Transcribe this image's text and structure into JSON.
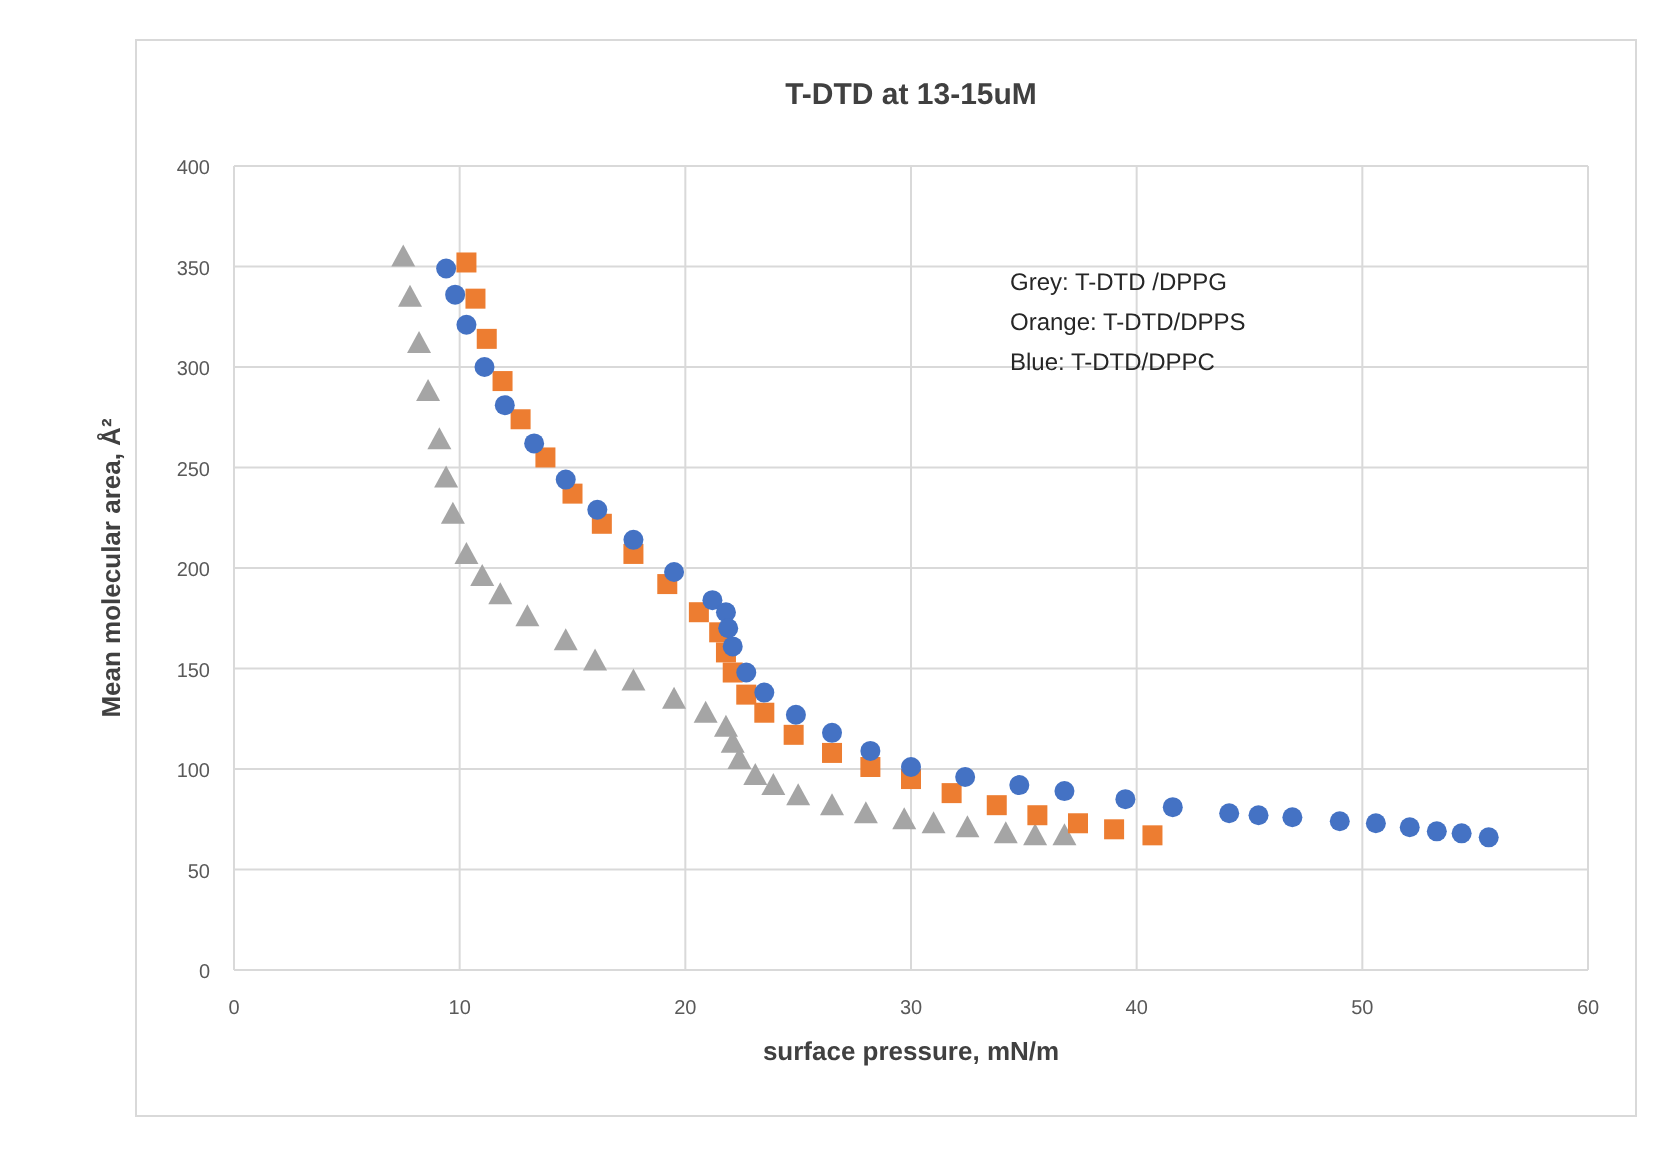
{
  "chart_data": {
    "type": "scatter",
    "title": "T-DTD at 13-15uM",
    "xlabel": "surface pressure, mN/m",
    "ylabel": "Mean molecular area, Å²",
    "xlim": [
      0,
      60
    ],
    "xticks": [
      0,
      10,
      20,
      30,
      40,
      50,
      60
    ],
    "ylim": [
      0,
      400
    ],
    "yticks": [
      0,
      50,
      100,
      150,
      200,
      250,
      300,
      350,
      400
    ],
    "grid": true,
    "annotations": [
      "Grey: T-DTD /DPPG",
      "Orange: T-DTD/DPPS",
      "Blue: T-DTD/DPPC"
    ],
    "series": [
      {
        "color": "#a5a5a5",
        "marker": "triangle",
        "x": [
          7.5,
          7.8,
          8.2,
          8.6,
          9.1,
          9.4,
          9.7,
          10.3,
          11,
          11.8,
          13,
          14.7,
          16,
          17.7,
          19.5,
          20.9,
          21.8,
          22.1,
          22.4,
          23.1,
          23.9,
          25,
          26.5,
          28,
          29.7,
          31,
          32.5,
          34.2,
          35.5,
          36.8
        ],
        "values": [
          355,
          335,
          312,
          288,
          264,
          245,
          227,
          207,
          196,
          187,
          176,
          164,
          154,
          144,
          135,
          128,
          121,
          113,
          105,
          97,
          92,
          87,
          82,
          78,
          75,
          73,
          71,
          68,
          67,
          67
        ]
      },
      {
        "color": "#ed7d31",
        "marker": "square",
        "x": [
          10.3,
          10.7,
          11.2,
          11.9,
          12.7,
          13.8,
          15,
          16.3,
          17.7,
          19.2,
          20.6,
          21.5,
          21.8,
          22.1,
          22.7,
          23.5,
          24.8,
          26.5,
          28.2,
          30,
          31.8,
          33.8,
          35.6,
          37.4,
          39,
          40.7
        ],
        "values": [
          352,
          334,
          314,
          293,
          274,
          255,
          237,
          222,
          207,
          192,
          178,
          168,
          158,
          148,
          137,
          128,
          117,
          108,
          101,
          95,
          88,
          82,
          77,
          73,
          70,
          67
        ]
      },
      {
        "color": "#4472c4",
        "marker": "circle",
        "x": [
          9.4,
          9.8,
          10.3,
          11.1,
          12,
          13.3,
          14.7,
          16.1,
          17.7,
          19.5,
          21.2,
          21.8,
          21.9,
          22.1,
          22.7,
          23.5,
          24.9,
          26.5,
          28.2,
          30,
          32.4,
          34.8,
          36.8,
          39.5,
          41.6,
          44.1,
          45.4,
          46.9,
          49,
          50.6,
          52.1,
          53.3,
          54.4,
          55.6
        ],
        "values": [
          349,
          336,
          321,
          300,
          281,
          262,
          244,
          229,
          214,
          198,
          184,
          178,
          170,
          161,
          148,
          138,
          127,
          118,
          109,
          101,
          96,
          92,
          89,
          85,
          81,
          78,
          77,
          76,
          74,
          73,
          71,
          69,
          68,
          66
        ]
      }
    ]
  }
}
